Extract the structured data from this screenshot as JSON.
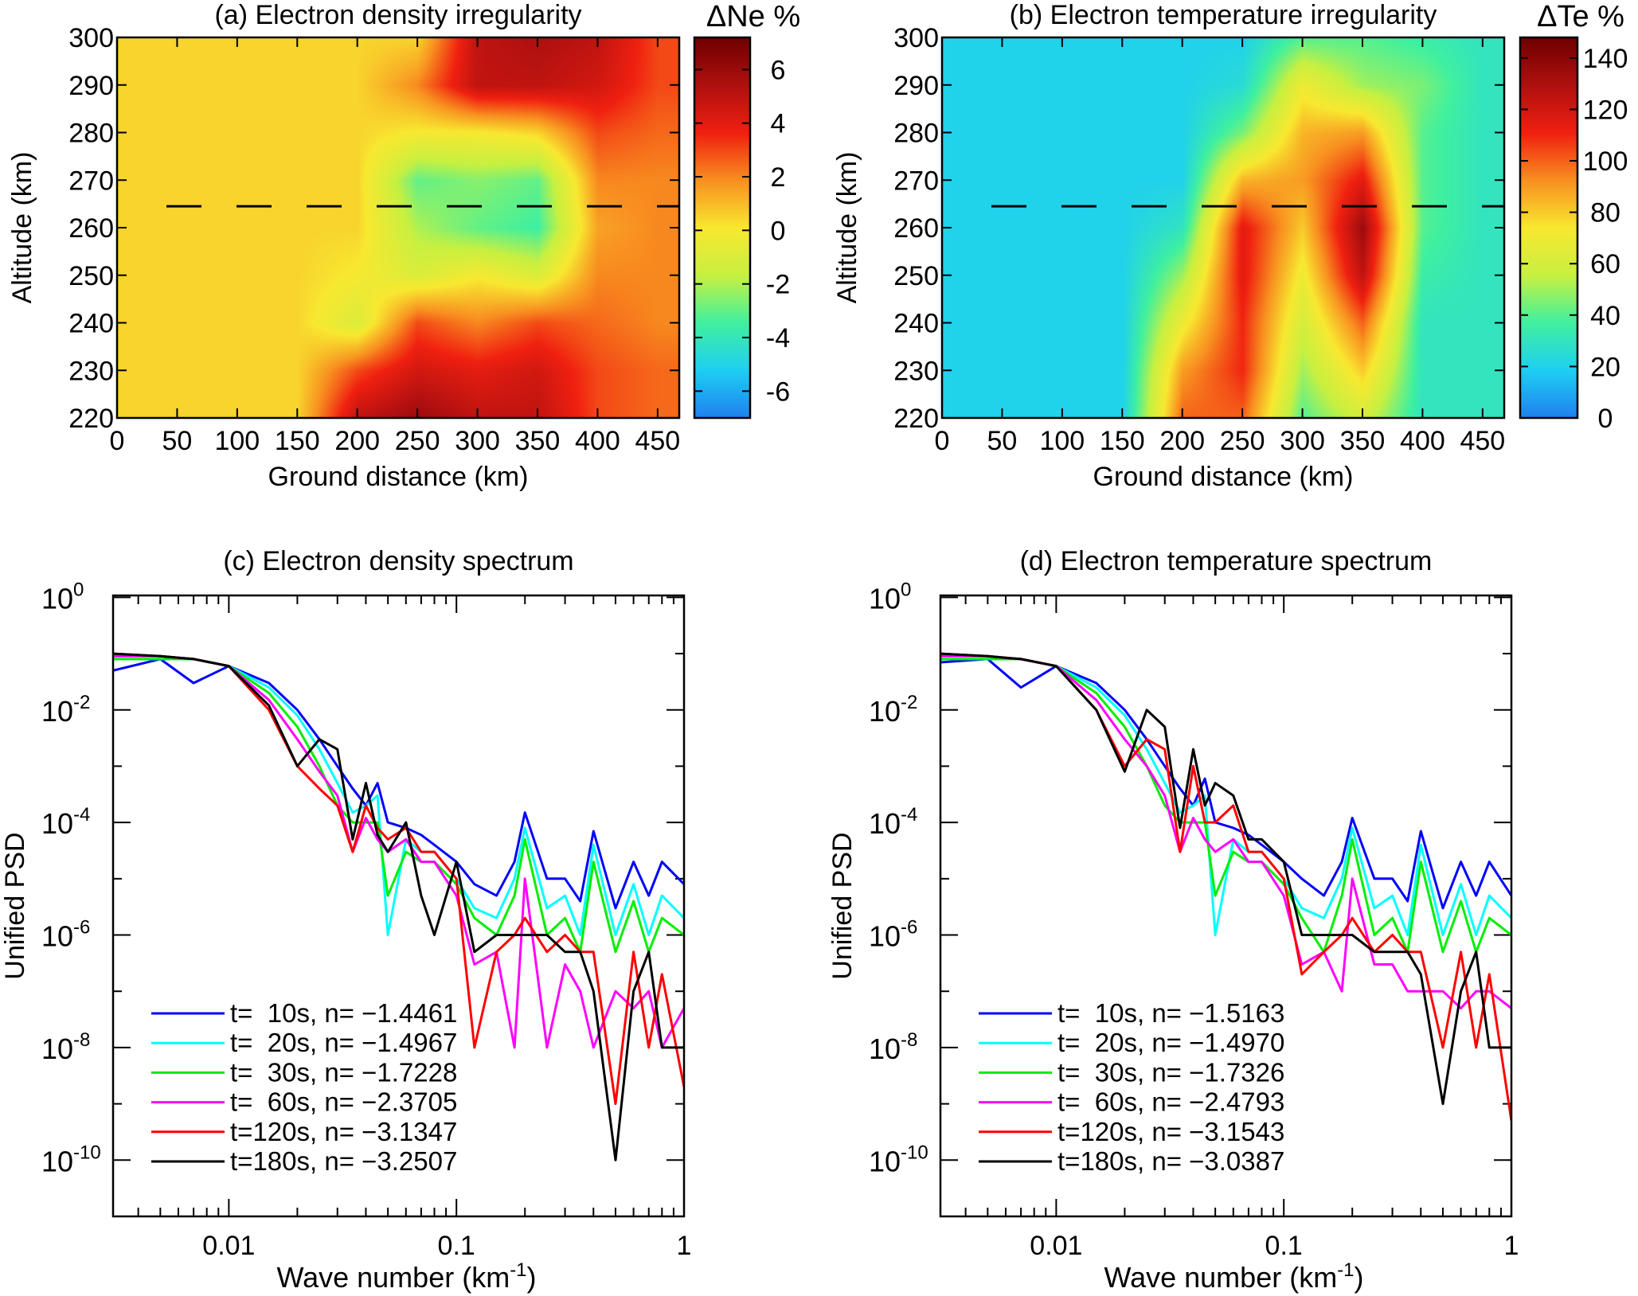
{
  "colormap": [
    "#1f7ff0",
    "#1ecff2",
    "#3ff0a0",
    "#c8f040",
    "#f8e830",
    "#f89020",
    "#f02010",
    "#b01010",
    "#700000"
  ],
  "chart_data": [
    {
      "id": "a",
      "type": "heatmap",
      "title": "(a) Electron density irregularity",
      "colorbar_label": "ΔNe %",
      "xlabel": "Ground distance (km)",
      "ylabel": "Altitude (km)",
      "xlim": [
        0,
        468
      ],
      "ylim": [
        220,
        300
      ],
      "clim": [
        -7,
        7.2
      ],
      "xticks": [
        "0",
        "50",
        "100",
        "150",
        "200",
        "250",
        "300",
        "350",
        "400",
        "450"
      ],
      "yticks": [
        "300",
        "290",
        "280",
        "270",
        "260",
        "250",
        "240",
        "230",
        "220"
      ],
      "cticks": [
        "6",
        "4",
        "2",
        "0",
        "-2",
        "-4",
        "-6"
      ],
      "dashed_line_altitude": 264.5,
      "grid_x": [
        0,
        50,
        100,
        150,
        200,
        250,
        300,
        350,
        400,
        450
      ],
      "grid_y": [
        300,
        290,
        280,
        270,
        260,
        250,
        240,
        230,
        220
      ],
      "values": [
        [
          0.5,
          0.5,
          0.5,
          0.5,
          0.5,
          0.5,
          5,
          5.5,
          5,
          3
        ],
        [
          0.5,
          0.5,
          0.5,
          0.5,
          0.5,
          2,
          5,
          5,
          4.5,
          3
        ],
        [
          0.5,
          0.5,
          0.5,
          0.5,
          0.5,
          0,
          0,
          0.5,
          3,
          2.5
        ],
        [
          0.5,
          0.5,
          0.5,
          0.5,
          0.5,
          -3,
          -2.5,
          -3,
          2,
          2
        ],
        [
          0.5,
          0.5,
          0.5,
          0.5,
          0.5,
          -2,
          -3,
          -3.5,
          1.5,
          2
        ],
        [
          0.5,
          0.5,
          0.5,
          0.5,
          0,
          -1,
          0,
          -1,
          2,
          2
        ],
        [
          0.5,
          0.5,
          0.5,
          0.5,
          -1,
          3,
          2,
          3,
          2.5,
          2
        ],
        [
          0.5,
          0.5,
          0.5,
          0.5,
          3,
          4.5,
          4,
          4.5,
          3,
          2.5
        ],
        [
          0.5,
          0.5,
          0.5,
          0.5,
          5,
          6,
          5,
          5,
          3,
          2.5
        ]
      ]
    },
    {
      "id": "b",
      "type": "heatmap",
      "title": "(b) Electron temperature irregularity",
      "colorbar_label": "ΔTe %",
      "xlabel": "Ground distance (km)",
      "ylabel": "Altitude (km)",
      "xlim": [
        0,
        468
      ],
      "ylim": [
        220,
        300
      ],
      "clim": [
        0,
        148
      ],
      "xticks": [
        "0",
        "50",
        "100",
        "150",
        "200",
        "250",
        "300",
        "350",
        "400",
        "450"
      ],
      "yticks": [
        "300",
        "290",
        "280",
        "270",
        "260",
        "250",
        "240",
        "230",
        "220"
      ],
      "cticks": [
        "140",
        "120",
        "100",
        "80",
        "60",
        "40",
        "20",
        "0"
      ],
      "dashed_line_altitude": 264.5,
      "grid_x": [
        0,
        50,
        100,
        150,
        200,
        250,
        300,
        350,
        400,
        450
      ],
      "grid_y": [
        300,
        290,
        280,
        270,
        260,
        250,
        240,
        230,
        220
      ],
      "values": [
        [
          20,
          20,
          20,
          20,
          20,
          20,
          40,
          40,
          35,
          30
        ],
        [
          20,
          20,
          20,
          20,
          20,
          25,
          70,
          50,
          45,
          30
        ],
        [
          20,
          20,
          20,
          20,
          20,
          45,
          85,
          90,
          40,
          30
        ],
        [
          20,
          20,
          20,
          20,
          20,
          85,
          90,
          115,
          40,
          30
        ],
        [
          20,
          20,
          20,
          20,
          30,
          115,
          80,
          135,
          40,
          30
        ],
        [
          20,
          20,
          20,
          20,
          50,
          115,
          70,
          125,
          35,
          30
        ],
        [
          20,
          20,
          20,
          20,
          70,
          110,
          60,
          100,
          30,
          30
        ],
        [
          20,
          20,
          20,
          20,
          90,
          110,
          50,
          80,
          30,
          30
        ],
        [
          20,
          20,
          20,
          20,
          100,
          100,
          40,
          60,
          30,
          30
        ]
      ]
    },
    {
      "id": "c",
      "type": "line",
      "title": "(c) Electron density spectrum",
      "xlabel": "Wave  number (km",
      "xlabel_sup": "-1",
      "xlabel_end": ")",
      "ylabel": "Unified PSD",
      "xscale": "log",
      "yscale": "log",
      "xlim": [
        0.0031,
        1
      ],
      "ylim": [
        1e-11,
        1.08
      ],
      "xticks": [
        "0.01",
        "0.1",
        "1"
      ],
      "ytick_base": "10",
      "ytick_exponents": [
        "0",
        "-2",
        "-4",
        "-6",
        "-8",
        "-10"
      ],
      "legend_position": "bottom-left",
      "x": [
        0.0031,
        0.005,
        0.007,
        0.01,
        0.015,
        0.02,
        0.025,
        0.03,
        0.035,
        0.04,
        0.045,
        0.05,
        0.06,
        0.07,
        0.08,
        0.1,
        0.12,
        0.15,
        0.18,
        0.2,
        0.25,
        0.3,
        0.35,
        0.4,
        0.5,
        0.6,
        0.7,
        0.8,
        1.0
      ],
      "series": [
        {
          "name": "t=  10s, n= −1.4461",
          "color": "#0000ff",
          "values": [
            0.05,
            0.08,
            0.03,
            0.06,
            0.03,
            0.01,
            0.003,
            0.001,
            0.0004,
            0.0002,
            0.0005,
            0.0001,
            8e-05,
            6e-05,
            4e-05,
            2e-05,
            8e-06,
            5e-06,
            2e-05,
            0.00015,
            1e-05,
            1e-05,
            4e-06,
            7e-05,
            3e-06,
            2e-05,
            5e-06,
            2e-05,
            8e-06
          ]
        },
        {
          "name": "t=  20s, n= −1.4967",
          "color": "#00ffff",
          "values": [
            0.08,
            0.08,
            0.08,
            0.06,
            0.025,
            0.008,
            0.002,
            0.0005,
            0.00015,
            0.0002,
            0.0003,
            1e-06,
            5e-05,
            3e-05,
            3e-05,
            1e-05,
            3e-06,
            2e-06,
            1e-05,
            8e-05,
            3e-06,
            5e-06,
            1e-06,
            4e-05,
            1e-06,
            8e-06,
            1e-06,
            5e-06,
            2e-06
          ]
        },
        {
          "name": "t=  30s, n= −1.7228",
          "color": "#00ee00",
          "values": [
            0.08,
            0.08,
            0.08,
            0.06,
            0.02,
            0.005,
            0.001,
            0.0002,
            0.0001,
            0.0001,
            0.0001,
            5e-06,
            3e-05,
            2e-05,
            2e-05,
            8e-06,
            2e-06,
            1e-06,
            5e-06,
            5e-05,
            1e-06,
            2e-06,
            5e-07,
            2e-05,
            5e-07,
            4e-06,
            5e-07,
            2e-06,
            1e-06
          ]
        },
        {
          "name": "t=  60s, n= −2.3705",
          "color": "#ff00ff",
          "values": [
            0.09,
            0.09,
            0.08,
            0.06,
            0.015,
            0.003,
            0.0008,
            0.0003,
            3e-05,
            0.00012,
            5e-05,
            3e-05,
            5e-05,
            2e-05,
            2e-05,
            5e-06,
            3e-07,
            5e-07,
            1e-08,
            1e-05,
            1e-08,
            3e-07,
            1e-07,
            1e-08,
            1e-07,
            5e-08,
            1e-07,
            1e-08,
            5e-08
          ]
        },
        {
          "name": "t=120s, n= −3.1347",
          "color": "#ff0000",
          "values": [
            0.1,
            0.09,
            0.08,
            0.06,
            0.01,
            0.001,
            0.0004,
            0.0002,
            3e-05,
            0.0002,
            8e-05,
            5e-05,
            8e-05,
            3e-05,
            3e-05,
            1e-05,
            1e-08,
            5e-07,
            1e-06,
            2e-06,
            5e-07,
            1e-06,
            5e-07,
            5e-07,
            1e-09,
            5e-07,
            1e-08,
            2e-07,
            2e-09
          ]
        },
        {
          "name": "t=180s, n= −3.2507",
          "color": "#000000",
          "values": [
            0.1,
            0.09,
            0.08,
            0.06,
            0.012,
            0.001,
            0.003,
            0.002,
            5e-05,
            0.0005,
            6e-05,
            3e-05,
            0.0001,
            5e-06,
            1e-06,
            2e-05,
            5e-07,
            1e-06,
            1e-06,
            1e-06,
            1e-06,
            5e-07,
            5e-07,
            1e-07,
            1e-10,
            1e-07,
            5e-07,
            1e-08,
            1e-08
          ]
        }
      ]
    },
    {
      "id": "d",
      "type": "line",
      "title": "(d) Electron temperature spectrum",
      "xlabel": "Wave  number (km",
      "xlabel_sup": "-1",
      "xlabel_end": ")",
      "ylabel": "Unified PSD",
      "xscale": "log",
      "yscale": "log",
      "xlim": [
        0.0031,
        1
      ],
      "ylim": [
        1e-11,
        1.08
      ],
      "xticks": [
        "0.01",
        "0.1",
        "1"
      ],
      "ytick_base": "10",
      "ytick_exponents": [
        "0",
        "-2",
        "-4",
        "-6",
        "-8",
        "-10"
      ],
      "legend_position": "bottom-left",
      "x": [
        0.0031,
        0.005,
        0.007,
        0.01,
        0.015,
        0.02,
        0.025,
        0.03,
        0.035,
        0.04,
        0.045,
        0.05,
        0.06,
        0.07,
        0.08,
        0.1,
        0.12,
        0.15,
        0.18,
        0.2,
        0.25,
        0.3,
        0.35,
        0.4,
        0.5,
        0.6,
        0.7,
        0.8,
        1.0
      ],
      "series": [
        {
          "name": "t=  10s, n= −1.5163",
          "color": "#0000ff",
          "values": [
            0.07,
            0.08,
            0.025,
            0.06,
            0.03,
            0.01,
            0.003,
            0.001,
            0.0004,
            0.0002,
            0.0006,
            0.0001,
            8e-05,
            6e-05,
            4e-05,
            2e-05,
            1e-05,
            5e-06,
            2e-05,
            0.00012,
            1e-05,
            1e-05,
            4e-06,
            7e-05,
            3e-06,
            2e-05,
            5e-06,
            2e-05,
            5e-06
          ]
        },
        {
          "name": "t=  20s, n= −1.4970",
          "color": "#00ffff",
          "values": [
            0.08,
            0.08,
            0.08,
            0.06,
            0.025,
            0.008,
            0.002,
            0.0005,
            0.00015,
            0.0002,
            0.0003,
            1e-06,
            5e-05,
            3e-05,
            3e-05,
            1e-05,
            3e-06,
            2e-06,
            1e-05,
            8e-05,
            3e-06,
            5e-06,
            1e-06,
            4e-05,
            1e-06,
            8e-06,
            1e-06,
            5e-06,
            2e-06
          ]
        },
        {
          "name": "t=  30s, n= −1.7326",
          "color": "#00ee00",
          "values": [
            0.08,
            0.08,
            0.08,
            0.06,
            0.02,
            0.005,
            0.001,
            0.0002,
            0.0001,
            0.0001,
            0.0001,
            5e-06,
            3e-05,
            2e-05,
            2e-05,
            8e-06,
            2e-06,
            5e-07,
            5e-06,
            5e-05,
            1e-06,
            2e-06,
            5e-07,
            2e-05,
            5e-07,
            4e-06,
            5e-07,
            2e-06,
            1e-06
          ]
        },
        {
          "name": "t=  60s, n= −2.4793",
          "color": "#ff00ff",
          "values": [
            0.09,
            0.09,
            0.08,
            0.06,
            0.015,
            0.003,
            0.001,
            0.0003,
            3e-05,
            0.00012,
            5e-05,
            3e-05,
            5e-05,
            2e-05,
            2e-05,
            5e-06,
            3e-07,
            5e-07,
            1e-07,
            1e-05,
            3e-07,
            3e-07,
            1e-07,
            1e-07,
            1e-07,
            5e-08,
            1e-07,
            1e-07,
            5e-08
          ]
        },
        {
          "name": "t=120s, n= −3.1543",
          "color": "#ff0000",
          "values": [
            0.1,
            0.09,
            0.08,
            0.06,
            0.01,
            0.001,
            0.003,
            0.002,
            3e-05,
            0.001,
            0.0001,
            0.0001,
            0.0002,
            3e-05,
            3e-05,
            1e-05,
            2e-07,
            5e-07,
            1e-06,
            2e-06,
            5e-07,
            1e-06,
            5e-07,
            5e-07,
            1e-08,
            5e-07,
            1e-08,
            2e-07,
            5e-10
          ]
        },
        {
          "name": "t=180s, n= −3.0387",
          "color": "#000000",
          "values": [
            0.1,
            0.09,
            0.08,
            0.06,
            0.01,
            0.0008,
            0.01,
            0.005,
            8e-05,
            0.002,
            0.0002,
            0.0005,
            0.0003,
            5e-05,
            5e-05,
            2e-05,
            1e-06,
            1e-06,
            1e-06,
            1e-06,
            5e-07,
            5e-07,
            5e-07,
            2e-07,
            1e-09,
            1e-07,
            5e-07,
            1e-08,
            1e-08
          ]
        }
      ]
    }
  ]
}
